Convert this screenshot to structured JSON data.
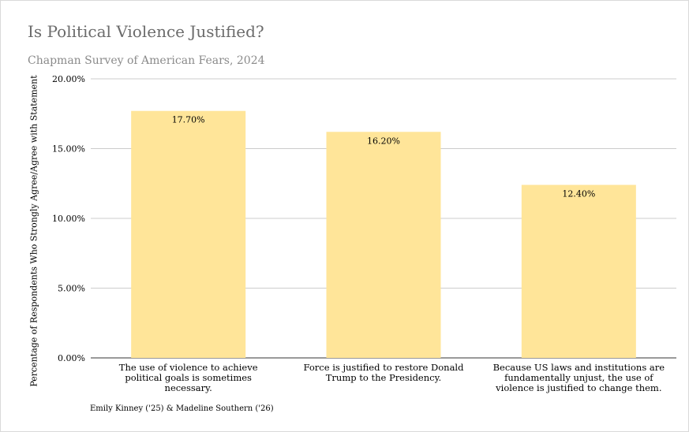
{
  "chart_data": {
    "type": "bar",
    "title": "Is Political Violence Justified?",
    "subtitle": "Chapman Survey of American Fears, 2024",
    "ylabel": "Percentage of Respondents Who Strongly Agree/Agree with Statement",
    "xlabel": "",
    "ylim": [
      0,
      20
    ],
    "yticks": [
      "0.00%",
      "5.00%",
      "10.00%",
      "15.00%",
      "20.00%"
    ],
    "categories": [
      "The use of violence to achieve political goals is sometimes necessary.",
      "Force is justified to restore Donald Trump to the Presidency.",
      "Because US laws and institutions are fundamentally unjust, the use of violence is justified to change them."
    ],
    "values": [
      17.7,
      16.2,
      12.4
    ],
    "data_labels": [
      "17.70%",
      "16.20%",
      "12.40%"
    ],
    "grid": true,
    "bar_color": "#FFE599"
  },
  "credit": "Emily Kinney ('25) & Madeline Southern ('26)"
}
